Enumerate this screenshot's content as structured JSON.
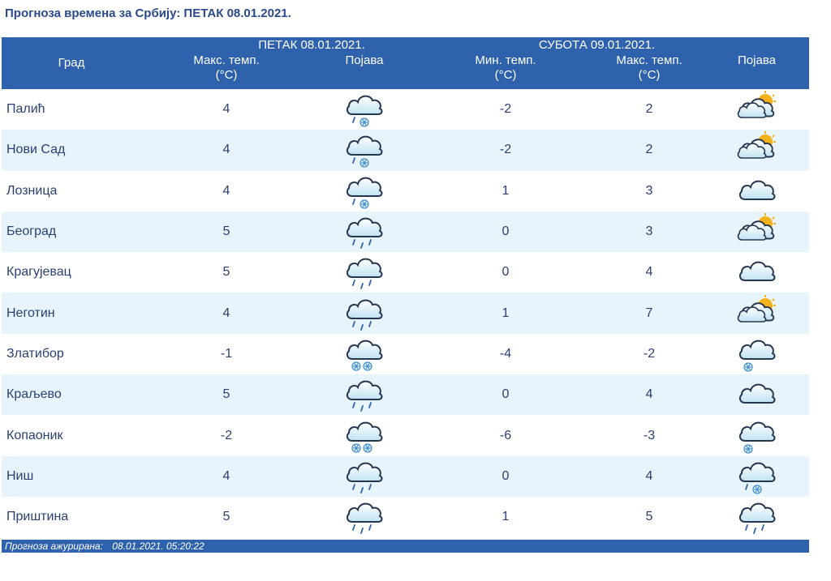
{
  "title": "Прогноза времена за Србију: ПЕТАК  08.01.2021.",
  "header": {
    "city_col": "Град",
    "day1": "ПЕТАК  08.01.2021.",
    "day2": "СУБОТА  09.01.2021.",
    "max_temp": "Макс. темп.",
    "min_temp": "Мин. темп.",
    "unit": "(°C)",
    "phenomenon": "Појава"
  },
  "rows": [
    {
      "city": "Палић",
      "fri_max": "4",
      "fri_icon": "cloud-rain-snow-icon",
      "sat_min": "-2",
      "sat_max": "2",
      "sat_icon": "sun-behind-clouds-icon"
    },
    {
      "city": "Нови Сад",
      "fri_max": "4",
      "fri_icon": "cloud-rain-snow-icon",
      "sat_min": "-2",
      "sat_max": "2",
      "sat_icon": "sun-behind-clouds-icon"
    },
    {
      "city": "Лозница",
      "fri_max": "4",
      "fri_icon": "cloud-rain-snow-icon",
      "sat_min": "1",
      "sat_max": "3",
      "sat_icon": "cloud-icon"
    },
    {
      "city": "Београд",
      "fri_max": "5",
      "fri_icon": "cloud-rain-icon",
      "sat_min": "0",
      "sat_max": "3",
      "sat_icon": "sun-behind-clouds-icon"
    },
    {
      "city": "Крагујевац",
      "fri_max": "5",
      "fri_icon": "cloud-rain-icon",
      "sat_min": "0",
      "sat_max": "4",
      "sat_icon": "cloud-icon"
    },
    {
      "city": "Неготин",
      "fri_max": "4",
      "fri_icon": "cloud-rain-icon",
      "sat_min": "1",
      "sat_max": "7",
      "sat_icon": "sun-behind-clouds-icon"
    },
    {
      "city": "Златибор",
      "fri_max": "-1",
      "fri_icon": "cloud-snow-icon",
      "sat_min": "-4",
      "sat_max": "-2",
      "sat_icon": "cloud-light-snow-icon"
    },
    {
      "city": "Краљево",
      "fri_max": "5",
      "fri_icon": "cloud-rain-icon",
      "sat_min": "0",
      "sat_max": "4",
      "sat_icon": "cloud-icon"
    },
    {
      "city": "Копаоник",
      "fri_max": "-2",
      "fri_icon": "cloud-snow-icon",
      "sat_min": "-6",
      "sat_max": "-3",
      "sat_icon": "cloud-light-snow-icon"
    },
    {
      "city": "Ниш",
      "fri_max": "4",
      "fri_icon": "cloud-rain-icon",
      "sat_min": "0",
      "sat_max": "4",
      "sat_icon": "cloud-rain-snow-icon"
    },
    {
      "city": "Приштина",
      "fri_max": "5",
      "fri_icon": "cloud-rain-icon",
      "sat_min": "1",
      "sat_max": "5",
      "sat_icon": "cloud-rain-icon"
    }
  ],
  "footer": {
    "label": "Прогноза ажурирана:",
    "timestamp": "08.01.2021. 05:20:22"
  },
  "colors": {
    "header_bg": "#2f62ad",
    "row_alt_bg": "#e8f4fb",
    "text": "#2a3f73",
    "title": "#2b4a8b",
    "sun": "#f5b21b"
  }
}
